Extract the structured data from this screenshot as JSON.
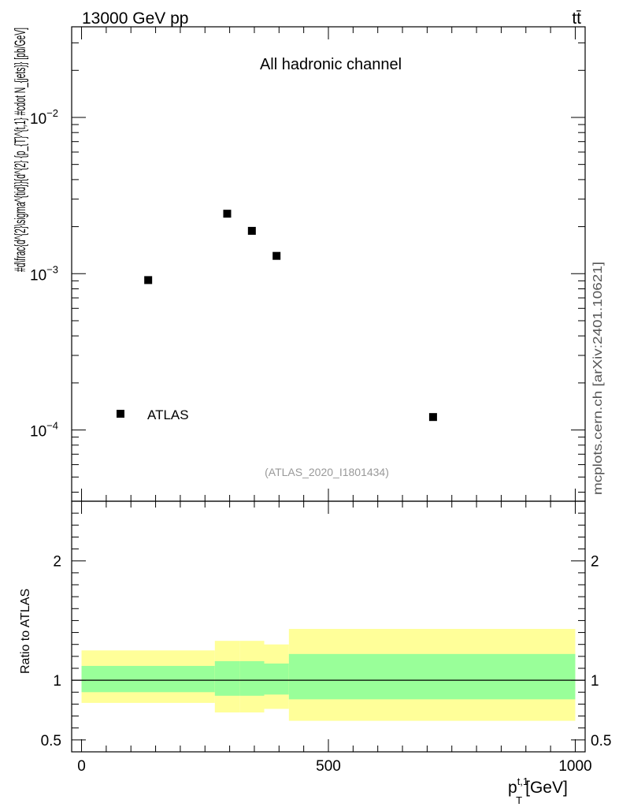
{
  "header": {
    "energy_label": "13000 GeV pp",
    "process_label": "tt̄"
  },
  "side_label": "mcplots.cern.ch [arXiv:2401.10621]",
  "chart_data": [
    {
      "type": "scatter",
      "title": "All hadronic channel",
      "analysis_label": "(ATLAS_2020_I1801434)",
      "ylabel": "#d\\frac{d^{2}\\sigma^{tid}}{d^{2} {p_{T}^{t,1} #cdot N_{jets}} [pb/GeV]",
      "xlim": [
        -20,
        1020
      ],
      "ylim": [
        3.5e-05,
        0.038
      ],
      "yscale": "log",
      "y_ticks": [
        {
          "value": 0.0001,
          "base": "10",
          "exp": "−4"
        },
        {
          "value": 0.001,
          "base": "10",
          "exp": "−3"
        },
        {
          "value": 0.01,
          "base": "10",
          "exp": "−2"
        }
      ],
      "legend": {
        "label": "ATLAS",
        "marker": "square",
        "position": "bottom-left"
      },
      "series": [
        {
          "name": "ATLAS",
          "points": [
            {
              "x": 135,
              "y": 0.00091
            },
            {
              "x": 295,
              "y": 0.00242
            },
            {
              "x": 345,
              "y": 0.00188
            },
            {
              "x": 395,
              "y": 0.0013
            },
            {
              "x": 712,
              "y": 0.000121
            }
          ]
        }
      ]
    },
    {
      "type": "area",
      "ylabel": "Ratio to ATLAS",
      "xlabel": "p_T^{t,1} [GeV]",
      "xlabel_main": "p",
      "xlabel_sub": "T",
      "xlabel_sup": "t,1",
      "xlabel_unit": "[GeV]",
      "xlim": [
        -20,
        1020
      ],
      "ylim": [
        0.4,
        2.5
      ],
      "x_ticks": [
        {
          "value": 0,
          "label": "0"
        },
        {
          "value": 500,
          "label": "500"
        },
        {
          "value": 1000,
          "label": "1000"
        }
      ],
      "y_ticks": [
        {
          "value": 0.5,
          "label": "0.5"
        },
        {
          "value": 1,
          "label": "1"
        },
        {
          "value": 2,
          "label": "2"
        }
      ],
      "reference_line": 1,
      "bins": [
        {
          "x_low": 0,
          "x_high": 270,
          "stat_low": 0.9,
          "stat_high": 1.12,
          "total_low": 0.81,
          "total_high": 1.25
        },
        {
          "x_low": 270,
          "x_high": 320,
          "stat_low": 0.87,
          "stat_high": 1.16,
          "total_low": 0.73,
          "total_high": 1.33
        },
        {
          "x_low": 320,
          "x_high": 370,
          "stat_low": 0.87,
          "stat_high": 1.16,
          "total_low": 0.73,
          "total_high": 1.33
        },
        {
          "x_low": 370,
          "x_high": 420,
          "stat_low": 0.88,
          "stat_high": 1.14,
          "total_low": 0.76,
          "total_high": 1.3
        },
        {
          "x_low": 420,
          "x_high": 1000,
          "stat_low": 0.84,
          "stat_high": 1.22,
          "total_low": 0.66,
          "total_high": 1.43
        }
      ],
      "colors": {
        "total": "#ffff99",
        "stat": "#99ff99",
        "line": "#000000"
      }
    }
  ]
}
